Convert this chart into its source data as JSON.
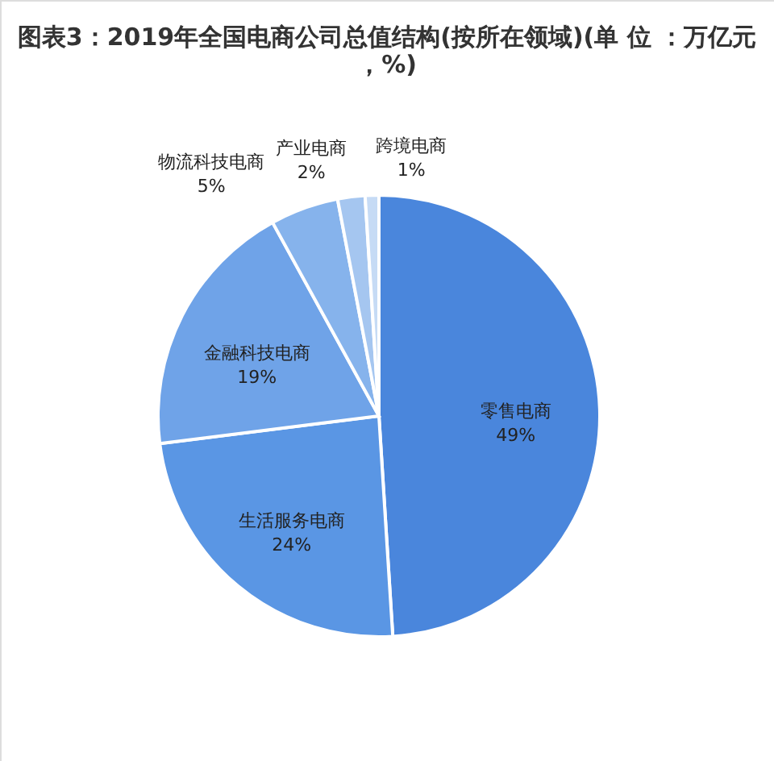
{
  "chart_data": {
    "type": "pie",
    "title": "图表3：2019年全国电商公司总值结构(按所在领域)(单 位 ：万亿元，%)",
    "categories": [
      "零售电商",
      "生活服务电商",
      "金融科技电商",
      "物流科技电商",
      "产业电商",
      "跨境电商"
    ],
    "values": [
      49,
      24,
      19,
      5,
      2,
      1
    ],
    "value_labels": [
      "49%",
      "24%",
      "19%",
      "5%",
      "2%",
      "1%"
    ],
    "colors": [
      "#4a86dc",
      "#5a96e4",
      "#6fa3e8",
      "#86b3ec",
      "#a5c6f0",
      "#c6dbf5"
    ],
    "legend": false
  }
}
